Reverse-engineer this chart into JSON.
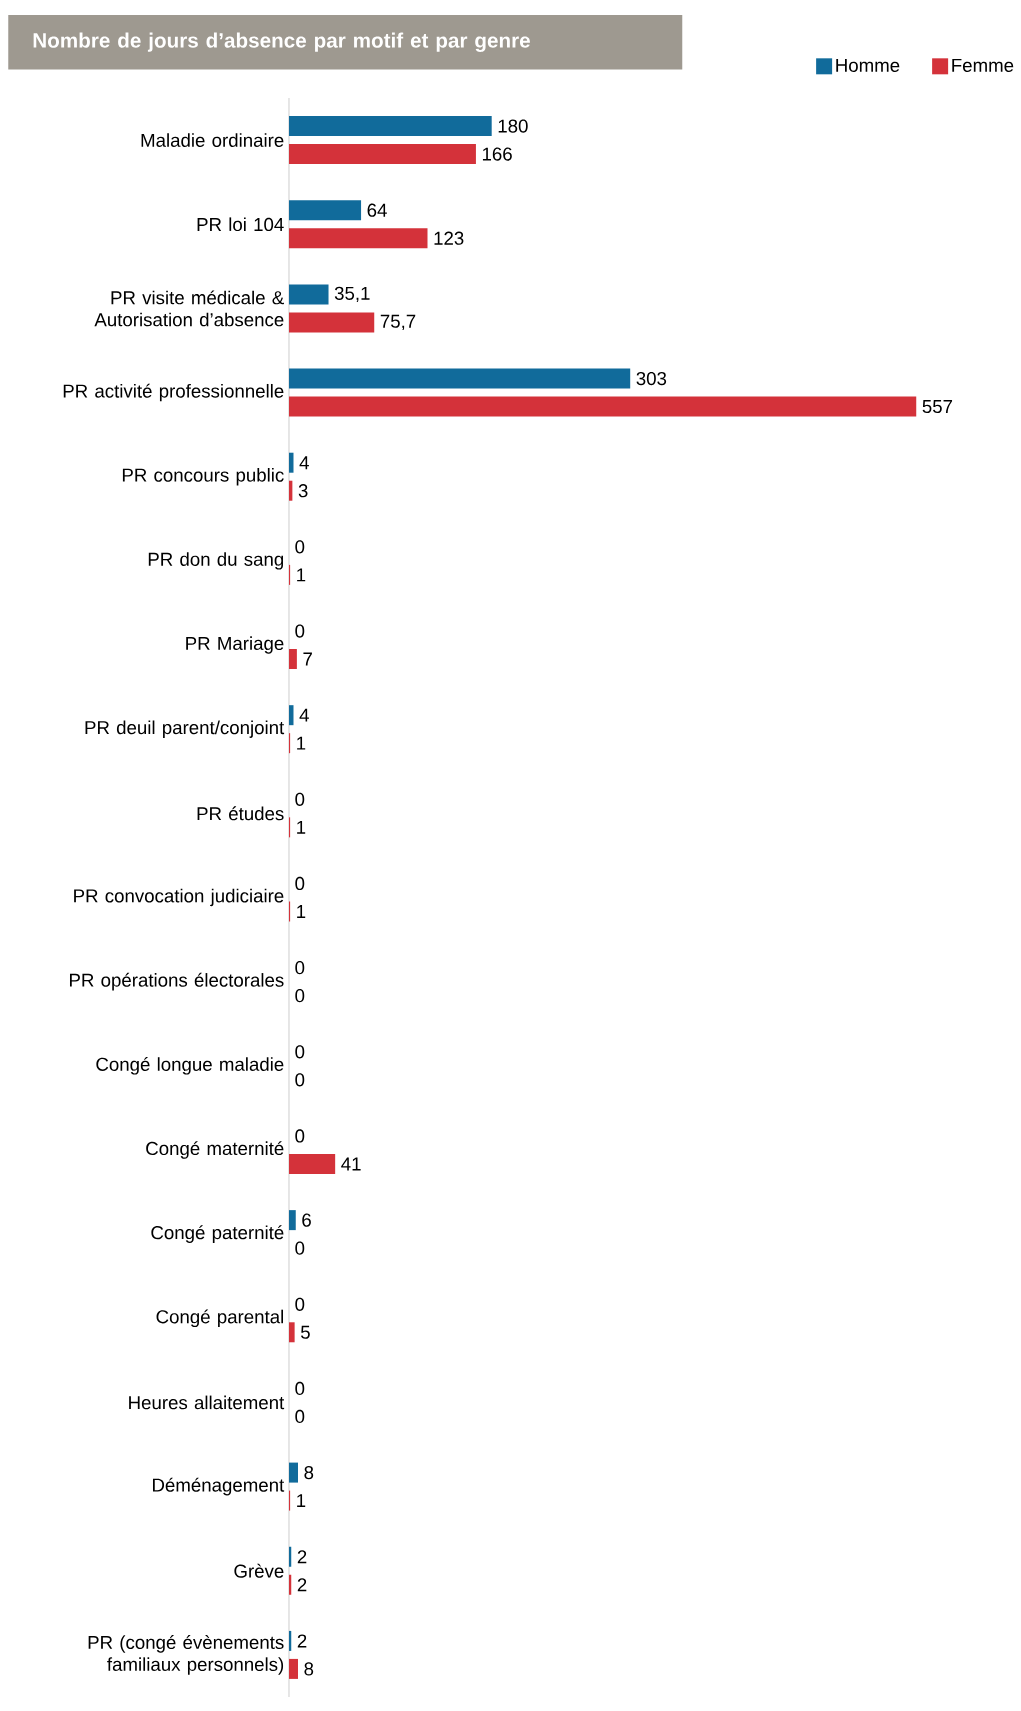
{
  "chart_data": {
    "type": "bar",
    "orientation": "horizontal",
    "title": "Nombre de jours d’absence par motif et par genre",
    "categories": [
      "Maladie ordinaire",
      "PR loi 104",
      "PR visite médicale & Autorisation d’absence",
      "PR activité professionnelle",
      "PR concours public",
      "PR don du sang",
      "PR Mariage",
      "PR deuil parent/conjoint",
      "PR études",
      "PR convocation judiciaire",
      "PR opérations électorales",
      "Congé longue maladie",
      "Congé maternité",
      "Congé paternité",
      "Congé parental",
      "Heures allaitement",
      "Déménagement",
      "Grève",
      "PR (congé évènements familiaux personnels)"
    ],
    "series": [
      {
        "name": "Homme",
        "color": "#116b9b",
        "values": [
          180,
          64,
          35.1,
          303,
          4,
          0,
          0,
          4,
          0,
          0,
          0,
          0,
          0,
          6,
          0,
          0,
          8,
          2,
          2
        ],
        "value_labels": [
          "180",
          "64",
          "35,1",
          "303",
          "4",
          "0",
          "0",
          "4",
          "0",
          "0",
          "0",
          "0",
          "0",
          "6",
          "0",
          "0",
          "8",
          "2",
          "2"
        ]
      },
      {
        "name": "Femme",
        "color": "#d4323a",
        "values": [
          166,
          123,
          75.7,
          557,
          3,
          1,
          7,
          1,
          1,
          1,
          0,
          0,
          41,
          0,
          5,
          0,
          1,
          2,
          8
        ],
        "value_labels": [
          "166",
          "123",
          "75,7",
          "557",
          "3",
          "1",
          "7",
          "1",
          "1",
          "1",
          "0",
          "0",
          "41",
          "0",
          "5",
          "0",
          "1",
          "2",
          "8"
        ]
      }
    ],
    "tick_labels": "y",
    "legend": "top right"
  }
}
